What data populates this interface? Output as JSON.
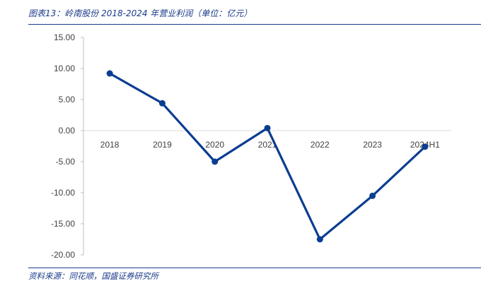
{
  "figure": {
    "title": "图表13：岭南股份 2018-2024 年营业利润（单位：亿元）",
    "source": "资料来源：同花顺，国盛证券研究所"
  },
  "chart_data": {
    "type": "line",
    "title": "图表13：岭南股份 2018-2024 年营业利润（单位：亿元）",
    "xlabel": "",
    "ylabel": "",
    "categories": [
      "2018",
      "2019",
      "2020",
      "2021",
      "2022",
      "2023",
      "2024H1"
    ],
    "series": [
      {
        "values": [
          9.2,
          4.4,
          -5.0,
          0.4,
          -17.5,
          -10.5,
          -2.6
        ]
      }
    ],
    "ylim": [
      -20,
      15
    ],
    "yticks": [
      "15.00",
      "10.00",
      "5.00",
      "0.00",
      "-5.00",
      "-10.00",
      "-15.00",
      "-20.00"
    ],
    "grid": false,
    "legend": "none",
    "line_color": "#0b3d91"
  }
}
